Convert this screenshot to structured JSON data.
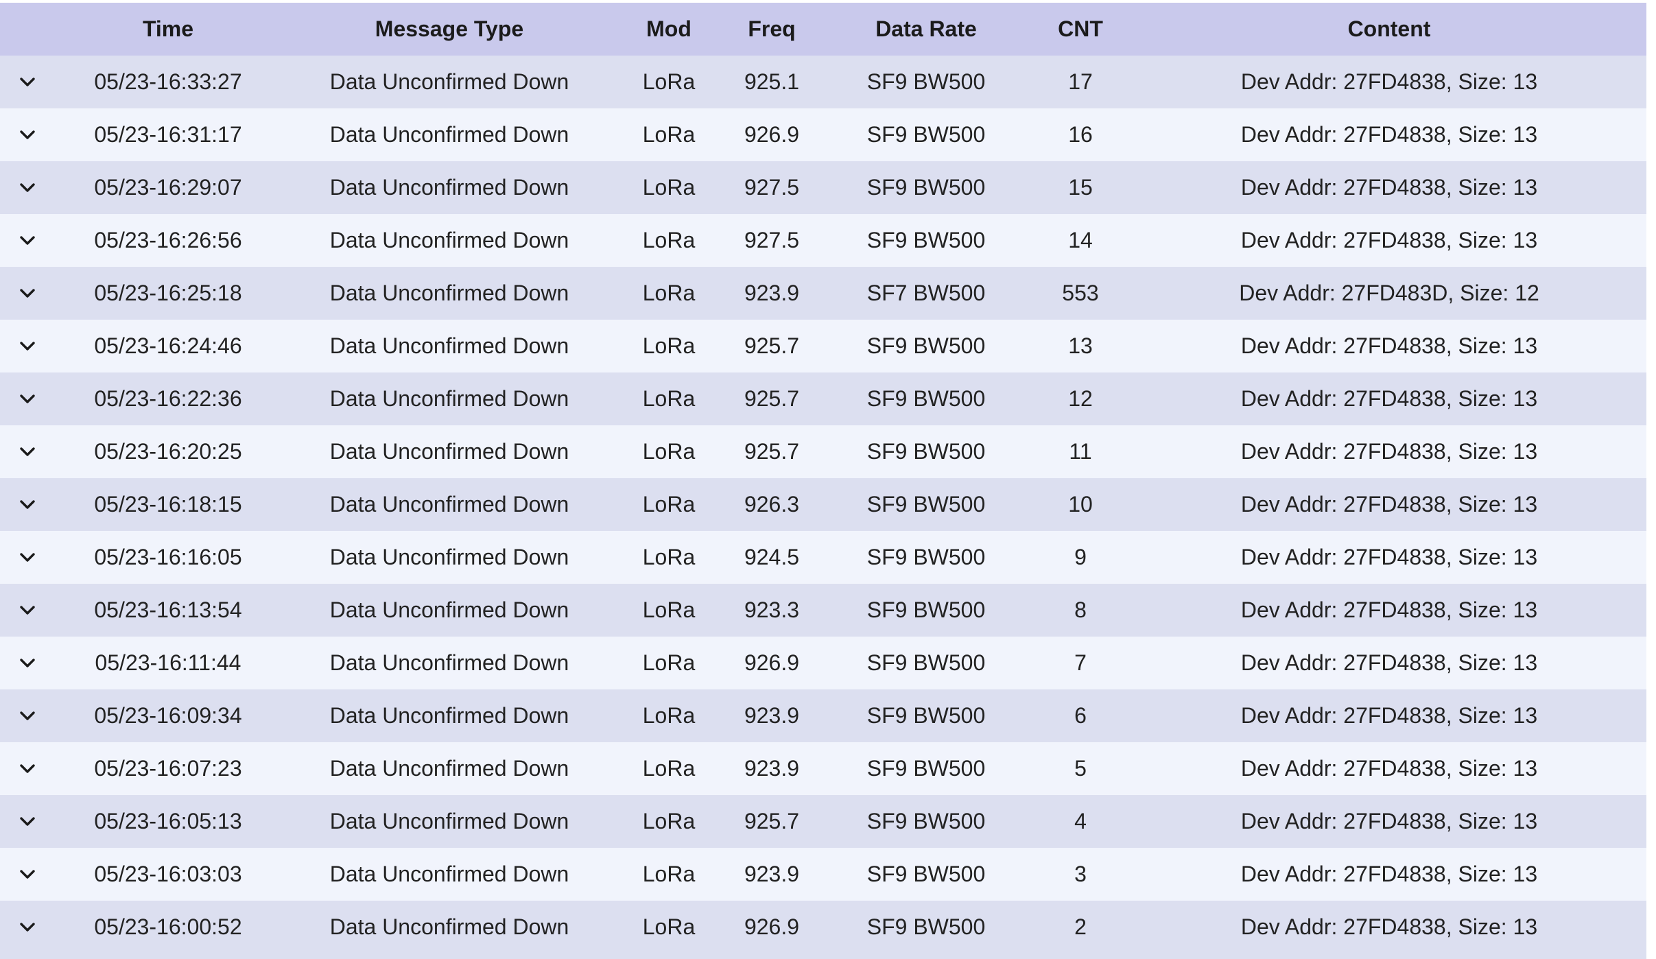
{
  "table": {
    "headers": {
      "time": "Time",
      "message_type": "Message Type",
      "mod": "Mod",
      "freq": "Freq",
      "data_rate": "Data Rate",
      "cnt": "CNT",
      "content": "Content"
    },
    "expand_icon": "chevron-down-icon",
    "colors": {
      "header_bg": "#c9c9ec",
      "row_odd_bg": "#dcdff0",
      "row_even_bg": "#f1f4fc"
    },
    "rows": [
      {
        "time": "05/23-16:33:27",
        "message_type": "Data Unconfirmed Down",
        "mod": "LoRa",
        "freq": "925.1",
        "data_rate": "SF9 BW500",
        "cnt": "17",
        "content": "Dev Addr: 27FD4838, Size: 13"
      },
      {
        "time": "05/23-16:31:17",
        "message_type": "Data Unconfirmed Down",
        "mod": "LoRa",
        "freq": "926.9",
        "data_rate": "SF9 BW500",
        "cnt": "16",
        "content": "Dev Addr: 27FD4838, Size: 13"
      },
      {
        "time": "05/23-16:29:07",
        "message_type": "Data Unconfirmed Down",
        "mod": "LoRa",
        "freq": "927.5",
        "data_rate": "SF9 BW500",
        "cnt": "15",
        "content": "Dev Addr: 27FD4838, Size: 13"
      },
      {
        "time": "05/23-16:26:56",
        "message_type": "Data Unconfirmed Down",
        "mod": "LoRa",
        "freq": "927.5",
        "data_rate": "SF9 BW500",
        "cnt": "14",
        "content": "Dev Addr: 27FD4838, Size: 13"
      },
      {
        "time": "05/23-16:25:18",
        "message_type": "Data Unconfirmed Down",
        "mod": "LoRa",
        "freq": "923.9",
        "data_rate": "SF7 BW500",
        "cnt": "553",
        "content": "Dev Addr: 27FD483D, Size: 12"
      },
      {
        "time": "05/23-16:24:46",
        "message_type": "Data Unconfirmed Down",
        "mod": "LoRa",
        "freq": "925.7",
        "data_rate": "SF9 BW500",
        "cnt": "13",
        "content": "Dev Addr: 27FD4838, Size: 13"
      },
      {
        "time": "05/23-16:22:36",
        "message_type": "Data Unconfirmed Down",
        "mod": "LoRa",
        "freq": "925.7",
        "data_rate": "SF9 BW500",
        "cnt": "12",
        "content": "Dev Addr: 27FD4838, Size: 13"
      },
      {
        "time": "05/23-16:20:25",
        "message_type": "Data Unconfirmed Down",
        "mod": "LoRa",
        "freq": "925.7",
        "data_rate": "SF9 BW500",
        "cnt": "11",
        "content": "Dev Addr: 27FD4838, Size: 13"
      },
      {
        "time": "05/23-16:18:15",
        "message_type": "Data Unconfirmed Down",
        "mod": "LoRa",
        "freq": "926.3",
        "data_rate": "SF9 BW500",
        "cnt": "10",
        "content": "Dev Addr: 27FD4838, Size: 13"
      },
      {
        "time": "05/23-16:16:05",
        "message_type": "Data Unconfirmed Down",
        "mod": "LoRa",
        "freq": "924.5",
        "data_rate": "SF9 BW500",
        "cnt": "9",
        "content": "Dev Addr: 27FD4838, Size: 13"
      },
      {
        "time": "05/23-16:13:54",
        "message_type": "Data Unconfirmed Down",
        "mod": "LoRa",
        "freq": "923.3",
        "data_rate": "SF9 BW500",
        "cnt": "8",
        "content": "Dev Addr: 27FD4838, Size: 13"
      },
      {
        "time": "05/23-16:11:44",
        "message_type": "Data Unconfirmed Down",
        "mod": "LoRa",
        "freq": "926.9",
        "data_rate": "SF9 BW500",
        "cnt": "7",
        "content": "Dev Addr: 27FD4838, Size: 13"
      },
      {
        "time": "05/23-16:09:34",
        "message_type": "Data Unconfirmed Down",
        "mod": "LoRa",
        "freq": "923.9",
        "data_rate": "SF9 BW500",
        "cnt": "6",
        "content": "Dev Addr: 27FD4838, Size: 13"
      },
      {
        "time": "05/23-16:07:23",
        "message_type": "Data Unconfirmed Down",
        "mod": "LoRa",
        "freq": "923.9",
        "data_rate": "SF9 BW500",
        "cnt": "5",
        "content": "Dev Addr: 27FD4838, Size: 13"
      },
      {
        "time": "05/23-16:05:13",
        "message_type": "Data Unconfirmed Down",
        "mod": "LoRa",
        "freq": "925.7",
        "data_rate": "SF9 BW500",
        "cnt": "4",
        "content": "Dev Addr: 27FD4838, Size: 13"
      },
      {
        "time": "05/23-16:03:03",
        "message_type": "Data Unconfirmed Down",
        "mod": "LoRa",
        "freq": "923.9",
        "data_rate": "SF9 BW500",
        "cnt": "3",
        "content": "Dev Addr: 27FD4838, Size: 13"
      },
      {
        "time": "05/23-16:00:52",
        "message_type": "Data Unconfirmed Down",
        "mod": "LoRa",
        "freq": "926.9",
        "data_rate": "SF9 BW500",
        "cnt": "2",
        "content": "Dev Addr: 27FD4838, Size: 13"
      }
    ]
  }
}
